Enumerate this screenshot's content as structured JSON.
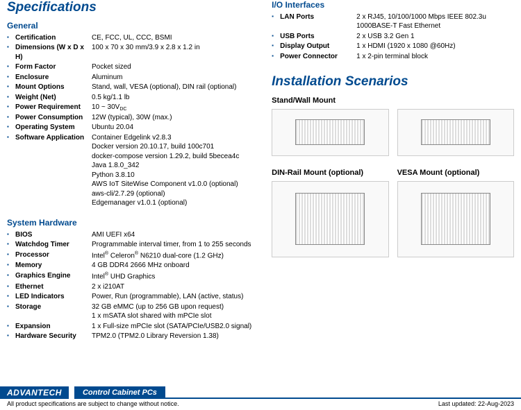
{
  "headings": {
    "specifications": "Specifications",
    "general": "General",
    "system_hardware": "System Hardware",
    "io": "I/O Interfaces",
    "installation": "Installation Scenarios",
    "stand_wall": "Stand/Wall Mount",
    "din_rail": "DIN-Rail Mount (optional)",
    "vesa": "VESA Mount (optional)"
  },
  "general": [
    {
      "label": "Certification",
      "value": "CE, FCC, UL, CCC, BSMI"
    },
    {
      "label": "Dimensions (W x D x H)",
      "value": "100 x 70 x 30 mm/3.9 x 2.8 x 1.2 in"
    },
    {
      "label": "Form Factor",
      "value": "Pocket sized"
    },
    {
      "label": "Enclosure",
      "value": "Aluminum"
    },
    {
      "label": "Mount Options",
      "value": "Stand, wall, VESA (optional), DIN rail (optional)"
    },
    {
      "label": "Weight (Net)",
      "value": "0.5 kg/1.1 lb"
    },
    {
      "label": "Power Requirement",
      "value": "10 ~ 30V<sub>DC</sub>"
    },
    {
      "label": "Power Consumption",
      "value": "12W (typical), 30W (max.)"
    },
    {
      "label": "Operating System",
      "value": "Ubuntu 20.04"
    },
    {
      "label": "Software Application",
      "value": "Container Edgelink v2.8.3\nDocker version 20.10.17, build 100c701\ndocker-compose version 1.29.2, build 5becea4c\nJava 1.8.0_342\nPython 3.8.10\nAWS IoT SiteWise Component v1.0.0 (optional)\naws-cli/2.7.29 (optional)\nEdgemanager v1.0.1 (optional)"
    }
  ],
  "hardware": [
    {
      "label": "BIOS",
      "value": "AMI UEFI x64"
    },
    {
      "label": "Watchdog Timer",
      "value": "Programmable interval timer, from 1 to 255 seconds"
    },
    {
      "label": "Processor",
      "value": "Intel<sup>®</sup> Celeron<sup>®</sup> N6210 dual-core (1.2 GHz)"
    },
    {
      "label": "Memory",
      "value": "4 GB DDR4 2666 MHz onboard"
    },
    {
      "label": "Graphics Engine",
      "value": "Intel<sup>®</sup> UHD Graphics"
    },
    {
      "label": "Ethernet",
      "value": "2 x i210AT"
    },
    {
      "label": "LED Indicators",
      "value": "Power, Run (programmable), LAN (active, status)"
    },
    {
      "label": "Storage",
      "value": "32 GB eMMC (up to 256 GB upon request)\n1 x mSATA slot shared with mPCIe slot"
    },
    {
      "label": "Expansion",
      "value": "1 x Full-size mPCIe slot (SATA/PCIe/USB2.0 signal)"
    },
    {
      "label": "Hardware Security",
      "value": "TPM2.0 (TPM2.0 Library Reversion 1.38)"
    }
  ],
  "io": [
    {
      "label": "LAN Ports",
      "value": "2 x RJ45, 10/100/1000 Mbps IEEE 802.3u 1000BASE-T Fast Ethernet"
    },
    {
      "label": "USB Ports",
      "value": "2 x USB 3.2 Gen 1"
    },
    {
      "label": "Display Output",
      "value": "1 x HDMI (1920 x 1080 @60Hz)"
    },
    {
      "label": "Power Connector",
      "value": "1 x 2-pin terminal block"
    }
  ],
  "footer": {
    "logo": "ADVANTECH",
    "category": "Control Cabinet PCs",
    "disclaimer": "All product specifications are subject to change without notice.",
    "updated": "Last updated: 22-Aug-2023"
  },
  "colors": {
    "brand_blue": "#004a8f",
    "text": "#000000",
    "background": "#ffffff"
  }
}
